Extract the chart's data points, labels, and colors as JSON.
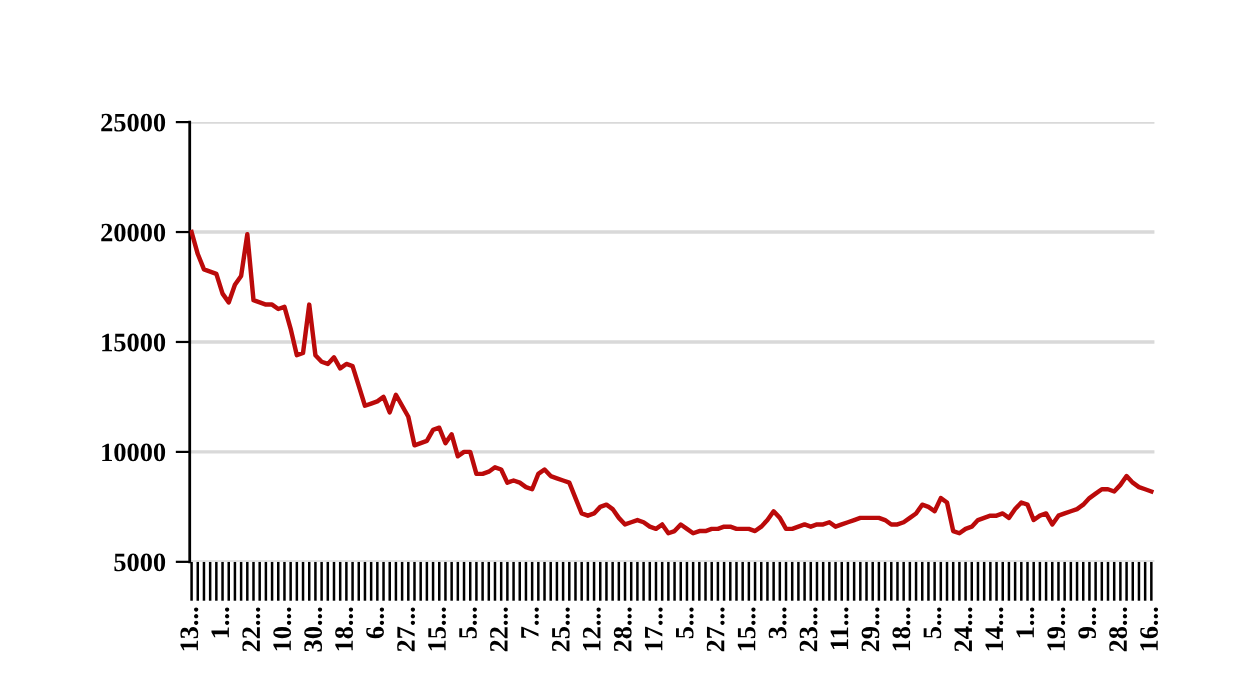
{
  "chart_data": {
    "type": "line",
    "color": "#bb0a0a",
    "categories": [
      "13...",
      null,
      null,
      null,
      null,
      "1...",
      null,
      null,
      null,
      null,
      "22...",
      null,
      null,
      null,
      null,
      "10...",
      null,
      null,
      null,
      null,
      "30...",
      null,
      null,
      null,
      null,
      "18...",
      null,
      null,
      null,
      null,
      "6...",
      null,
      null,
      null,
      null,
      "27...",
      null,
      null,
      null,
      null,
      "15...",
      null,
      null,
      null,
      null,
      "5...",
      null,
      null,
      null,
      null,
      "22...",
      null,
      null,
      null,
      null,
      "7...",
      null,
      null,
      null,
      null,
      "25...",
      null,
      null,
      null,
      null,
      "12...",
      null,
      null,
      null,
      null,
      "28...",
      null,
      null,
      null,
      null,
      "17...",
      null,
      null,
      null,
      null,
      "5...",
      null,
      null,
      null,
      null,
      "27...",
      null,
      null,
      null,
      null,
      "15...",
      null,
      null,
      null,
      null,
      "3...",
      null,
      null,
      null,
      null,
      "23...",
      null,
      null,
      null,
      null,
      "11...",
      null,
      null,
      null,
      null,
      "29...",
      null,
      null,
      null,
      null,
      "18...",
      null,
      null,
      null,
      null,
      "5...",
      null,
      null,
      null,
      null,
      "24...",
      null,
      null,
      null,
      null,
      "14...",
      null,
      null,
      null,
      null,
      "1...",
      null,
      null,
      null,
      null,
      "19...",
      null,
      null,
      null,
      null,
      "9...",
      null,
      null,
      null,
      null,
      "28...",
      null,
      null,
      null,
      null,
      "16..."
    ],
    "values": [
      20000,
      19000,
      18300,
      18200,
      18100,
      17200,
      16800,
      17600,
      18000,
      19900,
      16900,
      16800,
      16700,
      16700,
      16500,
      16600,
      15600,
      14400,
      14500,
      16700,
      14400,
      14100,
      14000,
      14300,
      13800,
      14000,
      13900,
      13000,
      12100,
      12200,
      12300,
      12500,
      11800,
      12600,
      12100,
      11600,
      10300,
      10400,
      10500,
      11000,
      11100,
      10400,
      10800,
      9800,
      10000,
      10000,
      9000,
      9000,
      9100,
      9300,
      9200,
      8600,
      8700,
      8600,
      8400,
      8300,
      9000,
      9200,
      8900,
      8800,
      8700,
      8600,
      7900,
      7200,
      7100,
      7200,
      7500,
      7600,
      7400,
      7000,
      6700,
      6800,
      6900,
      6800,
      6600,
      6500,
      6700,
      6300,
      6400,
      6700,
      6500,
      6300,
      6400,
      6400,
      6500,
      6500,
      6600,
      6600,
      6500,
      6500,
      6500,
      6400,
      6600,
      6900,
      7300,
      7000,
      6500,
      6500,
      6600,
      6700,
      6600,
      6700,
      6700,
      6800,
      6600,
      6700,
      6800,
      6900,
      7000,
      7000,
      7000,
      7000,
      6900,
      6700,
      6700,
      6800,
      7000,
      7200,
      7600,
      7500,
      7300,
      7900,
      7700,
      6400,
      6300,
      6500,
      6600,
      6900,
      7000,
      7100,
      7100,
      7200,
      7000,
      7400,
      7700,
      7600,
      6900,
      7100,
      7200,
      6700,
      7100,
      7200,
      7300,
      7400,
      7600,
      7900,
      8100,
      8300,
      8300,
      8200,
      8500,
      8900,
      8600,
      8400,
      8300,
      8200
    ],
    "ylim": [
      5000,
      25000
    ],
    "yticks": [
      5000,
      10000,
      15000,
      20000,
      25000
    ],
    "grid": "y",
    "marker": "none",
    "line_style": "solid"
  }
}
